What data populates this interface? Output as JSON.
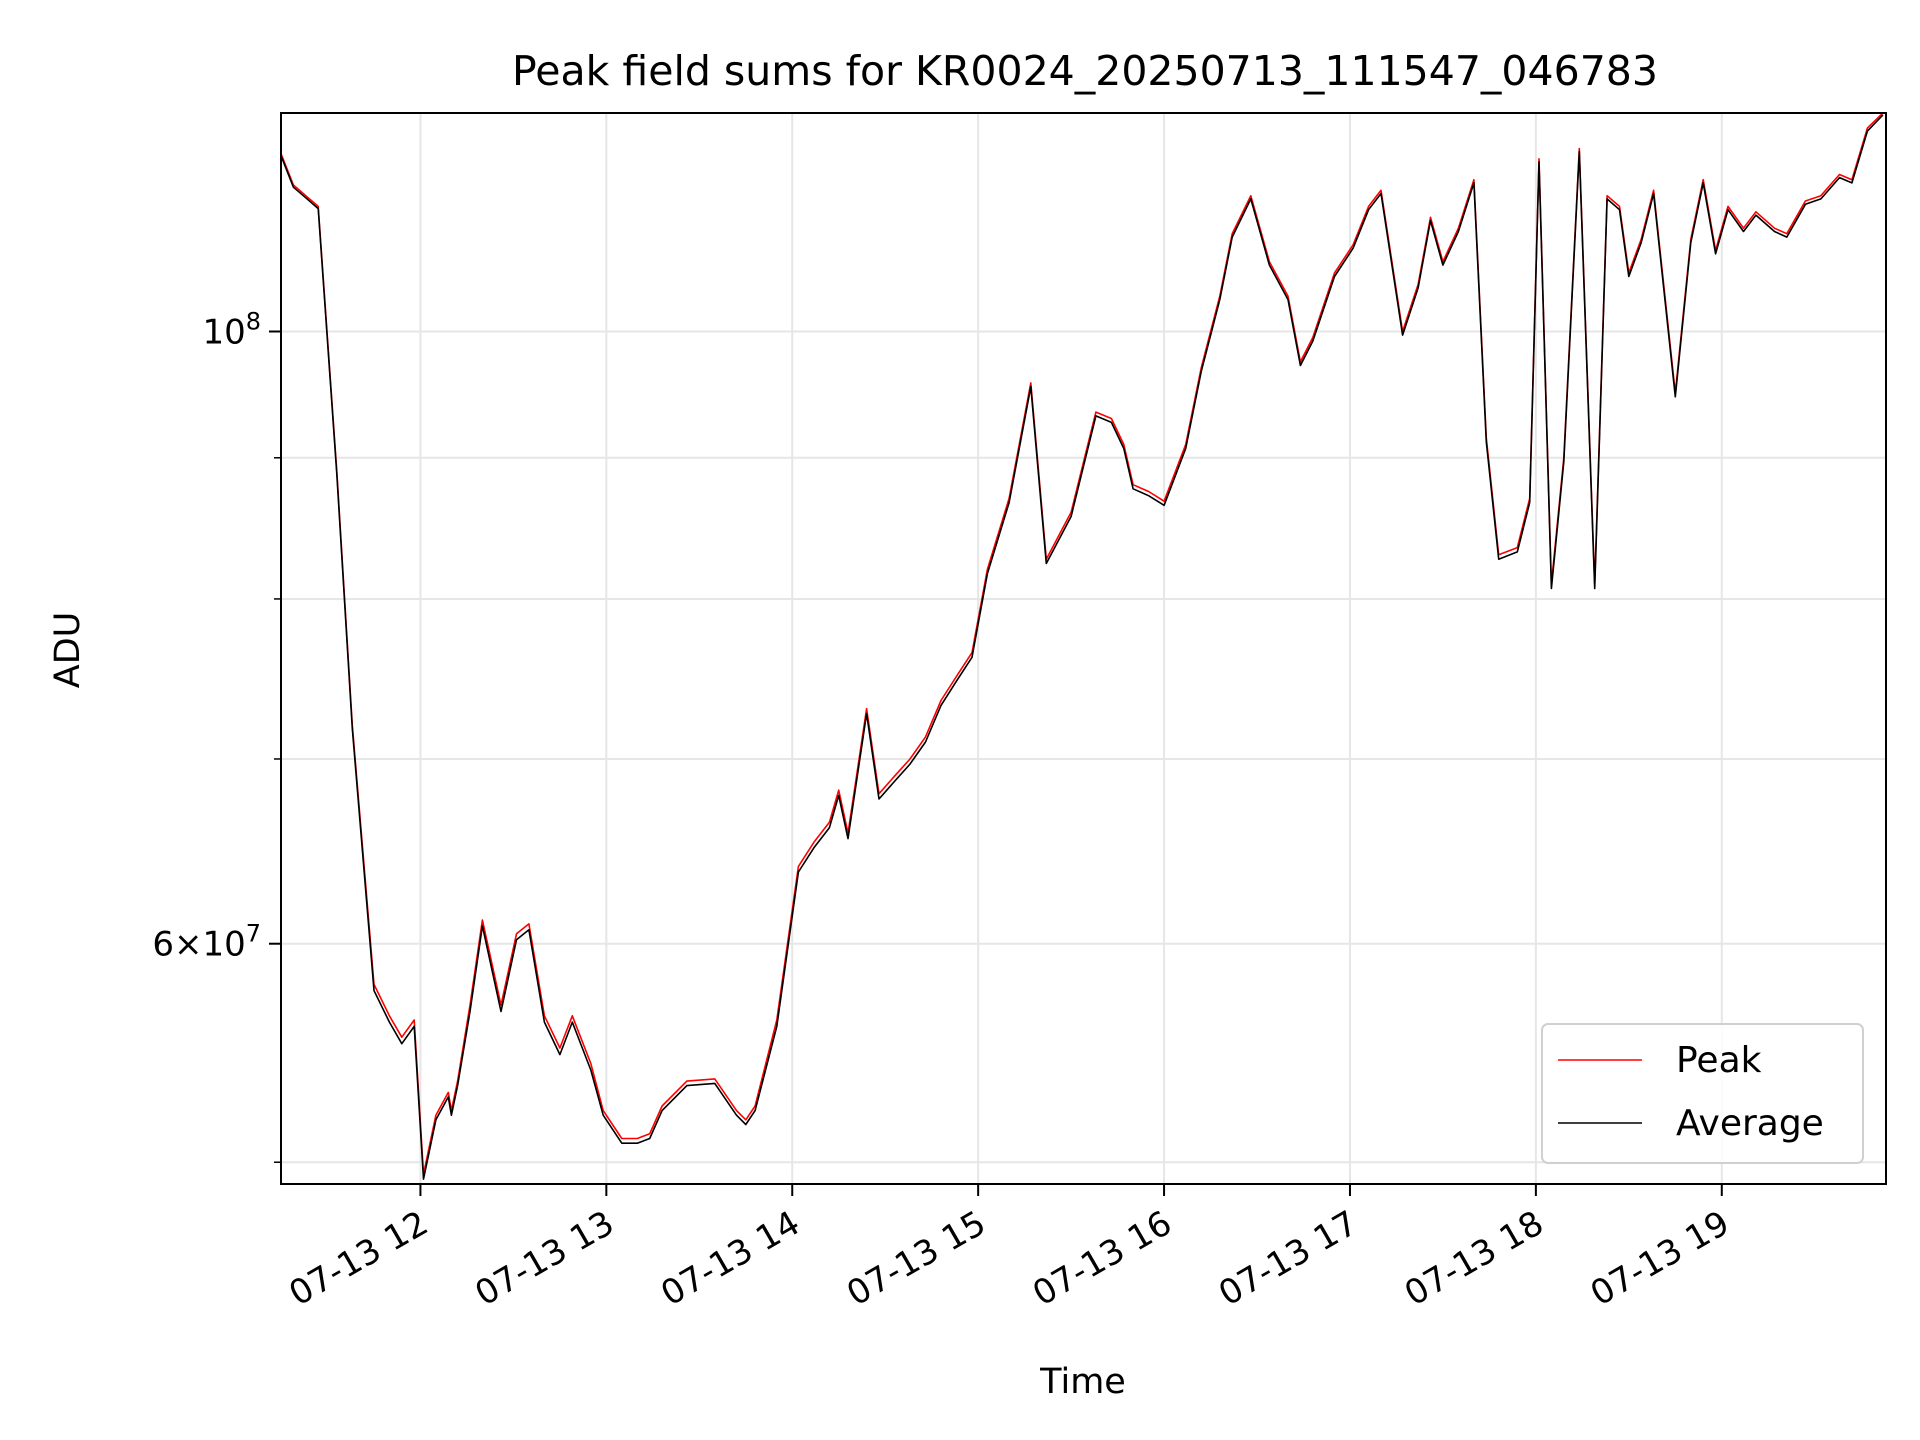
{
  "chart_data": {
    "type": "line",
    "title": "Peak field sums for KR0024_20250713_111547_046783",
    "xlabel": "Time",
    "ylabel": "ADU",
    "yscale": "log",
    "ylim": [
      49100000,
      120000000
    ],
    "xlim": [
      "2025-07-13 11:15",
      "2025-07-13 19:53"
    ],
    "x_ticks": [
      "07-13 12",
      "07-13 13",
      "07-13 14",
      "07-13 15",
      "07-13 16",
      "07-13 17",
      "07-13 18",
      "07-13 19"
    ],
    "y_ticks": [
      {
        "label": "6 × 10^7",
        "value": 60000000
      },
      {
        "label": "10^8",
        "value": 100000000
      }
    ],
    "y_minor_ticks": [
      50000000,
      70000000,
      80000000,
      90000000
    ],
    "grid": true,
    "legend": {
      "position": "lower-right"
    },
    "x": [
      "11:15",
      "11:19",
      "11:23",
      "11:27",
      "11:33",
      "11:38",
      "11:45",
      "11:50",
      "11:54",
      "11:58",
      "12:01",
      "12:05",
      "12:09",
      "12:10",
      "12:12",
      "12:16",
      "12:20",
      "12:26",
      "12:31",
      "12:35",
      "12:40",
      "12:45",
      "12:49",
      "12:55",
      "12:59",
      "13:05",
      "13:10",
      "13:14",
      "13:18",
      "13:26",
      "13:35",
      "13:42",
      "13:45",
      "13:48",
      "13:55",
      "14:02",
      "14:07",
      "14:12",
      "14:15",
      "14:18",
      "14:24",
      "14:28",
      "14:33",
      "14:38",
      "14:43",
      "14:48",
      "14:53",
      "14:58",
      "15:03",
      "15:10",
      "15:17",
      "15:22",
      "15:30",
      "15:38",
      "15:43",
      "15:47",
      "15:50",
      "15:55",
      "16:00",
      "16:07",
      "16:12",
      "16:18",
      "16:22",
      "16:28",
      "16:34",
      "16:40",
      "16:44",
      "16:48",
      "16:55",
      "17:01",
      "17:06",
      "17:10",
      "17:17",
      "17:22",
      "17:26",
      "17:30",
      "17:35",
      "17:40",
      "17:44",
      "17:48",
      "17:54",
      "17:58",
      "18:01",
      "18:05",
      "18:09",
      "18:14",
      "18:19",
      "18:23",
      "18:27",
      "18:30",
      "18:34",
      "18:38",
      "18:45",
      "18:50",
      "18:54",
      "18:58",
      "19:02",
      "19:07",
      "19:11",
      "19:17",
      "19:21",
      "19:27",
      "19:32",
      "19:38",
      "19:42",
      "19:47",
      "19:52"
    ],
    "series": [
      {
        "name": "Peak",
        "color": "#ff0000",
        "values": [
          116000000,
          113000000,
          112000000,
          111000000,
          89000000,
          72000000,
          58000000,
          56500000,
          55500000,
          56300000,
          49500000,
          52000000,
          53000000,
          52200000,
          53500000,
          57000000,
          61200000,
          57000000,
          60500000,
          61000000,
          56500000,
          55000000,
          56500000,
          54300000,
          52200000,
          51000000,
          51000000,
          51200000,
          52400000,
          53500000,
          53600000,
          52200000,
          51800000,
          52400000,
          56300000,
          64000000,
          65300000,
          66400000,
          68200000,
          65800000,
          73000000,
          68000000,
          69000000,
          70000000,
          71300000,
          73500000,
          75000000,
          76500000,
          82000000,
          87000000,
          95800000,
          82700000,
          86000000,
          93500000,
          93000000,
          91000000,
          88000000,
          87500000,
          86800000,
          91000000,
          97000000,
          103000000,
          108500000,
          112000000,
          106000000,
          103000000,
          97500000,
          99500000,
          105000000,
          107500000,
          111000000,
          112500000,
          100000000,
          104000000,
          110000000,
          106000000,
          109000000,
          113500000,
          91500000,
          83000000,
          83500000,
          87000000,
          115500000,
          81000000,
          90000000,
          116500000,
          81000000,
          112000000,
          111000000,
          105000000,
          108000000,
          112500000,
          95000000,
          108000000,
          113500000,
          107000000,
          111000000,
          109000000,
          110500000,
          109000000,
          108500000,
          111500000,
          112000000,
          114000000,
          113500000,
          118500000,
          120000000
        ]
      },
      {
        "name": "Average",
        "color": "#000000",
        "values": [
          115800000,
          112800000,
          111800000,
          110800000,
          88800000,
          71800000,
          57700000,
          56200000,
          55200000,
          56000000,
          49300000,
          51800000,
          52800000,
          52000000,
          53300000,
          56700000,
          60900000,
          56700000,
          60200000,
          60700000,
          56200000,
          54700000,
          56200000,
          54000000,
          52000000,
          50800000,
          50800000,
          51000000,
          52200000,
          53300000,
          53400000,
          52000000,
          51600000,
          52200000,
          56000000,
          63700000,
          65000000,
          66100000,
          67900000,
          65500000,
          72700000,
          67700000,
          68700000,
          69700000,
          71000000,
          73200000,
          74700000,
          76200000,
          81700000,
          86700000,
          95500000,
          82400000,
          85700000,
          93200000,
          92700000,
          90700000,
          87700000,
          87200000,
          86500000,
          90700000,
          96700000,
          102700000,
          108200000,
          111700000,
          105700000,
          102700000,
          97200000,
          99200000,
          104700000,
          107200000,
          110700000,
          112200000,
          99700000,
          103700000,
          109700000,
          105700000,
          108700000,
          113200000,
          91200000,
          82700000,
          83200000,
          86700000,
          115200000,
          80700000,
          89700000,
          116200000,
          80700000,
          111700000,
          110700000,
          104700000,
          107700000,
          112200000,
          94700000,
          107700000,
          113200000,
          106700000,
          110700000,
          108700000,
          110200000,
          108700000,
          108200000,
          111200000,
          111700000,
          113700000,
          113200000,
          118200000,
          119800000
        ]
      }
    ]
  }
}
